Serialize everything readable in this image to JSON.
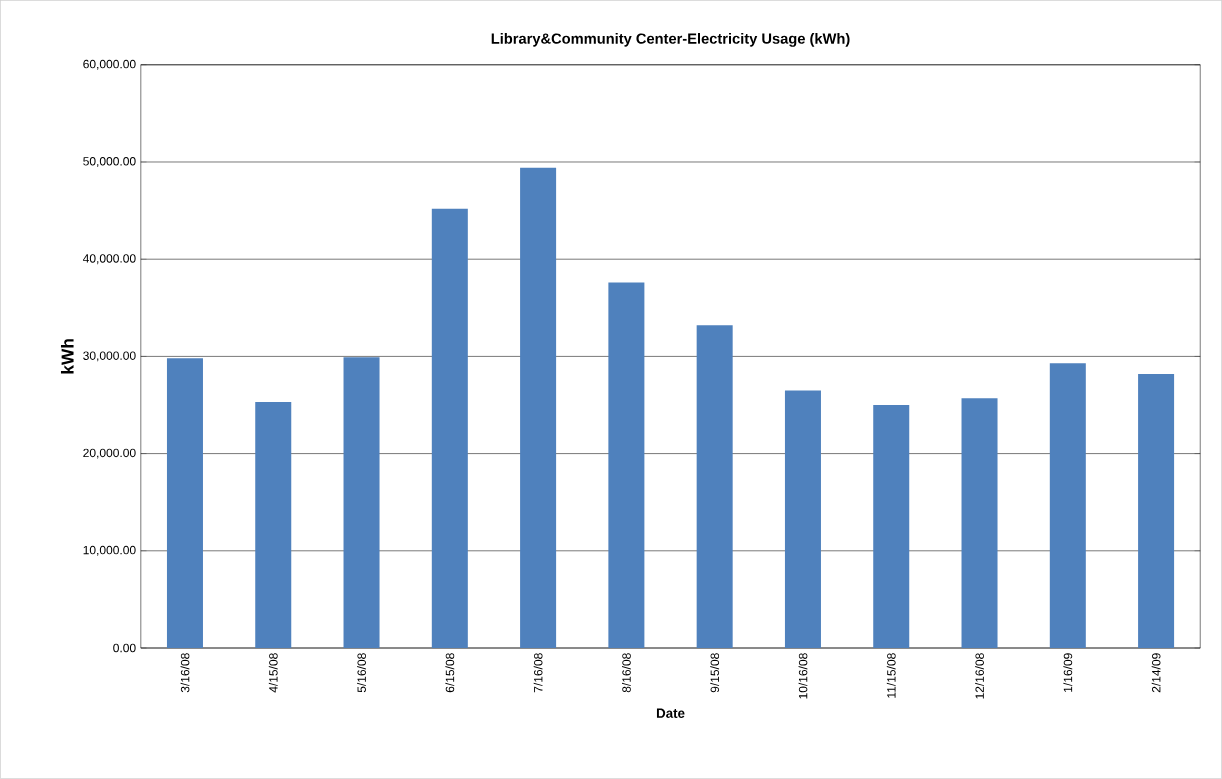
{
  "chart_data": {
    "type": "bar",
    "title": "Library&Community Center-Electricity Usage (kWh)",
    "xlabel": "Date",
    "ylabel": "kWh",
    "categories": [
      "3/16/08",
      "4/15/08",
      "5/16/08",
      "6/15/08",
      "7/16/08",
      "8/16/08",
      "9/15/08",
      "10/16/08",
      "11/15/08",
      "12/16/08",
      "1/16/09",
      "2/14/09"
    ],
    "values": [
      29800,
      25300,
      29900,
      45200,
      49400,
      37600,
      33200,
      26500,
      25000,
      25700,
      29300,
      28200
    ],
    "color": "#4f81bd",
    "ylim": [
      0,
      60000
    ],
    "yticks": [
      {
        "value": 0,
        "label": "0.00"
      },
      {
        "value": 10000,
        "label": "10,000.00"
      },
      {
        "value": 20000,
        "label": "20,000.00"
      },
      {
        "value": 30000,
        "label": "30,000.00"
      },
      {
        "value": 40000,
        "label": "40,000.00"
      },
      {
        "value": 50000,
        "label": "50,000.00"
      },
      {
        "value": 60000,
        "label": "60,000.00"
      }
    ],
    "grid": "y"
  }
}
